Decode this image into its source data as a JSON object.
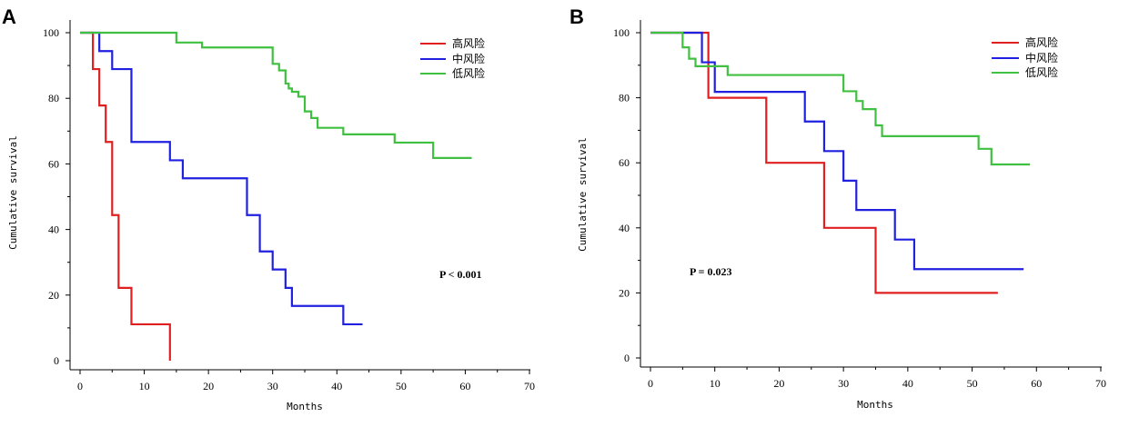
{
  "chart_data": [
    {
      "type": "line",
      "panel": "A",
      "xlabel": "Months",
      "ylabel": "Cumulative survival",
      "xlim": [
        0,
        70
      ],
      "ylim": [
        0,
        100
      ],
      "xticks": [
        0,
        10,
        20,
        30,
        40,
        50,
        60,
        70
      ],
      "yticks": [
        0,
        20,
        40,
        60,
        80,
        100
      ],
      "annotation": "P < 0.001",
      "legend_position": "top-right",
      "series": [
        {
          "name": "高风险",
          "color": "#e02020",
          "x": [
            0,
            2,
            3,
            4,
            5,
            6,
            8,
            14
          ],
          "y": [
            100,
            88.9,
            77.8,
            66.7,
            44.4,
            22.2,
            11.1,
            0
          ]
        },
        {
          "name": "中风险",
          "color": "#2020e0",
          "x": [
            0,
            3,
            5,
            8,
            14,
            16,
            26,
            28,
            30,
            32,
            33,
            41,
            44
          ],
          "y": [
            100,
            94.4,
            88.9,
            66.7,
            61.1,
            55.6,
            44.4,
            33.3,
            27.8,
            22.2,
            16.7,
            11.1,
            11.1
          ]
        },
        {
          "name": "低风险",
          "color": "#40c040",
          "x": [
            0,
            15,
            19,
            30,
            31,
            32,
            32.5,
            33,
            34,
            35,
            36,
            37,
            41,
            49,
            55,
            61
          ],
          "y": [
            100,
            97,
            95.5,
            90.5,
            88.5,
            84.5,
            83,
            82,
            80.5,
            76,
            74,
            71,
            69,
            66.5,
            61.8,
            61.8
          ]
        }
      ]
    },
    {
      "type": "line",
      "panel": "B",
      "xlabel": "Months",
      "ylabel": "Cumulative survival",
      "xlim": [
        0,
        70
      ],
      "ylim": [
        0,
        100
      ],
      "xticks": [
        0,
        10,
        20,
        30,
        40,
        50,
        60,
        70
      ],
      "yticks": [
        0,
        20,
        40,
        60,
        80,
        100
      ],
      "annotation": "P = 0.023",
      "legend_position": "top-right",
      "series": [
        {
          "name": "高风险",
          "color": "#e02020",
          "x": [
            0,
            9,
            18,
            27,
            35,
            54
          ],
          "y": [
            100,
            80,
            60,
            40,
            20,
            20
          ]
        },
        {
          "name": "中风险",
          "color": "#2020e0",
          "x": [
            0,
            8,
            10,
            24,
            27,
            30,
            32,
            38,
            41,
            58
          ],
          "y": [
            100,
            90.9,
            81.8,
            72.7,
            63.6,
            54.5,
            45.5,
            36.4,
            27.3,
            27.3
          ]
        },
        {
          "name": "低风险",
          "color": "#40c040",
          "x": [
            0,
            5,
            6,
            7,
            12,
            30,
            32,
            33,
            35,
            36,
            51,
            53,
            59
          ],
          "y": [
            100,
            95.5,
            92,
            89.7,
            87,
            82,
            79,
            76.5,
            71.5,
            68.2,
            64.3,
            59.5,
            59.5
          ]
        }
      ]
    }
  ]
}
